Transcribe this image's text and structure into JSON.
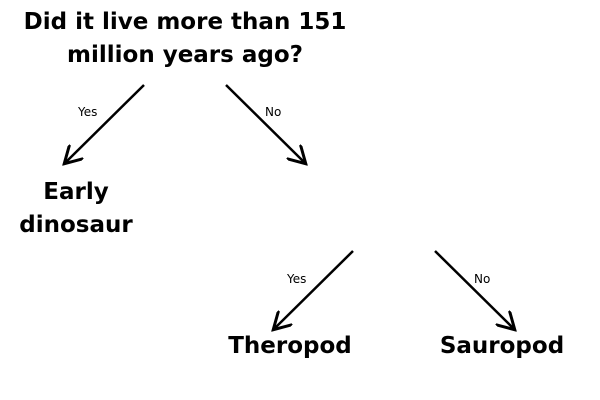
{
  "diagram": {
    "root": {
      "line1": "Did it live more than 151",
      "line2": "million years ago?"
    },
    "branches": [
      {
        "label": "Yes",
        "target": "Early dinosaur"
      },
      {
        "label": "No",
        "target": ""
      }
    ],
    "leaves": {
      "early": {
        "line1": "Early",
        "line2": "dinosaur"
      },
      "theropod": "Theropod",
      "sauropod": "Sauropod"
    },
    "sub_branches": [
      {
        "label": "Yes",
        "target": "Theropod"
      },
      {
        "label": "No",
        "target": "Sauropod"
      }
    ],
    "colors": {
      "text": "#000000",
      "background": "#ffffff"
    }
  }
}
